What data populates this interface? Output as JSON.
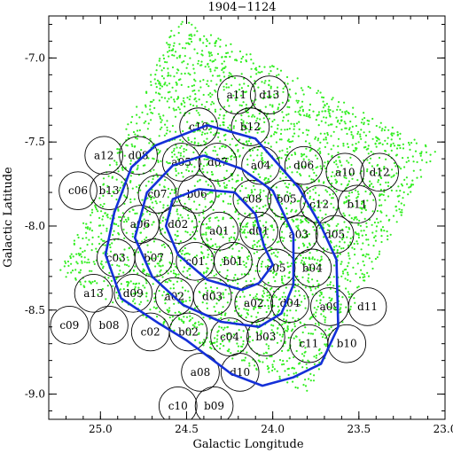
{
  "chart_data": {
    "type": "scatter",
    "title": "1904−1124",
    "xlabel": "Galactic Longitude",
    "ylabel": "Galactic Latitude",
    "xlim": [
      25.3,
      23.0
    ],
    "ylim": [
      -9.15,
      -6.75
    ],
    "x_ticks": [
      25.0,
      24.5,
      24.0,
      23.5,
      23.0
    ],
    "x_tick_labels": [
      "25.0",
      "24.5",
      "24.0",
      "23.5",
      "23.0"
    ],
    "y_ticks": [
      -7.0,
      -7.5,
      -8.0,
      -8.5,
      -9.0
    ],
    "y_tick_labels": [
      "-7.0",
      "-7.5",
      "-8.0",
      "-8.5",
      "-9.0"
    ],
    "colors": {
      "points": "#33ee22",
      "contours": "#1430d8",
      "fields": "#000000"
    },
    "fields": [
      {
        "label": "a11",
        "l": 24.21,
        "b": -7.22
      },
      {
        "label": "d13",
        "l": 24.02,
        "b": -7.22
      },
      {
        "label": "c10",
        "l": 24.43,
        "b": -7.41
      },
      {
        "label": "b12",
        "l": 24.13,
        "b": -7.41
      },
      {
        "label": "a12",
        "l": 24.98,
        "b": -7.58
      },
      {
        "label": "d08",
        "l": 24.78,
        "b": -7.58
      },
      {
        "label": "a05",
        "l": 24.53,
        "b": -7.62
      },
      {
        "label": "d07",
        "l": 24.32,
        "b": -7.62
      },
      {
        "label": "a04",
        "l": 24.07,
        "b": -7.64
      },
      {
        "label": "d06",
        "l": 23.82,
        "b": -7.64
      },
      {
        "label": "a10",
        "l": 23.58,
        "b": -7.68
      },
      {
        "label": "d12",
        "l": 23.38,
        "b": -7.68
      },
      {
        "label": "c06",
        "l": 25.13,
        "b": -7.79
      },
      {
        "label": "b13",
        "l": 24.95,
        "b": -7.79
      },
      {
        "label": "c07",
        "l": 24.67,
        "b": -7.81
      },
      {
        "label": "b06",
        "l": 24.44,
        "b": -7.81
      },
      {
        "label": "c08",
        "l": 24.12,
        "b": -7.84
      },
      {
        "label": "b05",
        "l": 23.92,
        "b": -7.84
      },
      {
        "label": "c12",
        "l": 23.73,
        "b": -7.87
      },
      {
        "label": "b11",
        "l": 23.51,
        "b": -7.87
      },
      {
        "label": "a06",
        "l": 24.77,
        "b": -7.99
      },
      {
        "label": "d02",
        "l": 24.55,
        "b": -7.99
      },
      {
        "label": "a01",
        "l": 24.31,
        "b": -8.03
      },
      {
        "label": "d01",
        "l": 24.08,
        "b": -8.03
      },
      {
        "label": "a03",
        "l": 23.85,
        "b": -8.05
      },
      {
        "label": "d05",
        "l": 23.64,
        "b": -8.05
      },
      {
        "label": "c03",
        "l": 24.91,
        "b": -8.19
      },
      {
        "label": "b07",
        "l": 24.69,
        "b": -8.19
      },
      {
        "label": "c01",
        "l": 24.45,
        "b": -8.21
      },
      {
        "label": "b01",
        "l": 24.23,
        "b": -8.21
      },
      {
        "label": "c05",
        "l": 23.98,
        "b": -8.25
      },
      {
        "label": "b04",
        "l": 23.77,
        "b": -8.25
      },
      {
        "label": "a13",
        "l": 25.04,
        "b": -8.4
      },
      {
        "label": "d09",
        "l": 24.81,
        "b": -8.4
      },
      {
        "label": "a02",
        "l": 24.57,
        "b": -8.42
      },
      {
        "label": "d03",
        "l": 24.35,
        "b": -8.42
      },
      {
        "label": "a02",
        "l": 24.11,
        "b": -8.46
      },
      {
        "label": "d04",
        "l": 23.9,
        "b": -8.46
      },
      {
        "label": "a09",
        "l": 23.67,
        "b": -8.48
      },
      {
        "label": "d11",
        "l": 23.45,
        "b": -8.48
      },
      {
        "label": "c09",
        "l": 25.18,
        "b": -8.59
      },
      {
        "label": "b08",
        "l": 24.95,
        "b": -8.59
      },
      {
        "label": "c02",
        "l": 24.71,
        "b": -8.63
      },
      {
        "label": "b02",
        "l": 24.49,
        "b": -8.63
      },
      {
        "label": "c04",
        "l": 24.25,
        "b": -8.66
      },
      {
        "label": "b03",
        "l": 24.04,
        "b": -8.66
      },
      {
        "label": "c11",
        "l": 23.79,
        "b": -8.7
      },
      {
        "label": "b10",
        "l": 23.57,
        "b": -8.7
      },
      {
        "label": "a08",
        "l": 24.42,
        "b": -8.87
      },
      {
        "label": "d10",
        "l": 24.19,
        "b": -8.87
      },
      {
        "label": "c10",
        "l": 24.55,
        "b": -9.07
      },
      {
        "label": "b09",
        "l": 24.34,
        "b": -9.07
      }
    ],
    "contours": [
      [
        [
          24.43,
          -7.78
        ],
        [
          24.22,
          -7.8
        ],
        [
          24.1,
          -7.93
        ],
        [
          24.05,
          -8.12
        ],
        [
          24.0,
          -8.23
        ],
        [
          24.08,
          -8.34
        ],
        [
          24.18,
          -8.38
        ],
        [
          24.38,
          -8.32
        ],
        [
          24.55,
          -8.17
        ],
        [
          24.62,
          -8.0
        ],
        [
          24.58,
          -7.84
        ],
        [
          24.43,
          -7.78
        ]
      ],
      [
        [
          24.4,
          -7.58
        ],
        [
          24.18,
          -7.66
        ],
        [
          24.0,
          -7.79
        ],
        [
          23.88,
          -8.05
        ],
        [
          23.88,
          -8.35
        ],
        [
          23.95,
          -8.52
        ],
        [
          24.08,
          -8.6
        ],
        [
          24.3,
          -8.57
        ],
        [
          24.52,
          -8.47
        ],
        [
          24.7,
          -8.3
        ],
        [
          24.8,
          -8.07
        ],
        [
          24.73,
          -7.8
        ],
        [
          24.58,
          -7.64
        ],
        [
          24.4,
          -7.58
        ]
      ],
      [
        [
          24.38,
          -7.4
        ],
        [
          24.1,
          -7.48
        ],
        [
          23.85,
          -7.77
        ],
        [
          23.72,
          -8.0
        ],
        [
          23.63,
          -8.2
        ],
        [
          23.62,
          -8.6
        ],
        [
          23.72,
          -8.82
        ],
        [
          23.88,
          -8.9
        ],
        [
          24.06,
          -8.95
        ],
        [
          24.24,
          -8.88
        ],
        [
          24.5,
          -8.68
        ],
        [
          24.66,
          -8.58
        ],
        [
          24.88,
          -8.43
        ],
        [
          24.97,
          -8.17
        ],
        [
          24.92,
          -7.92
        ],
        [
          24.82,
          -7.65
        ],
        [
          24.68,
          -7.52
        ],
        [
          24.38,
          -7.4
        ]
      ]
    ]
  }
}
